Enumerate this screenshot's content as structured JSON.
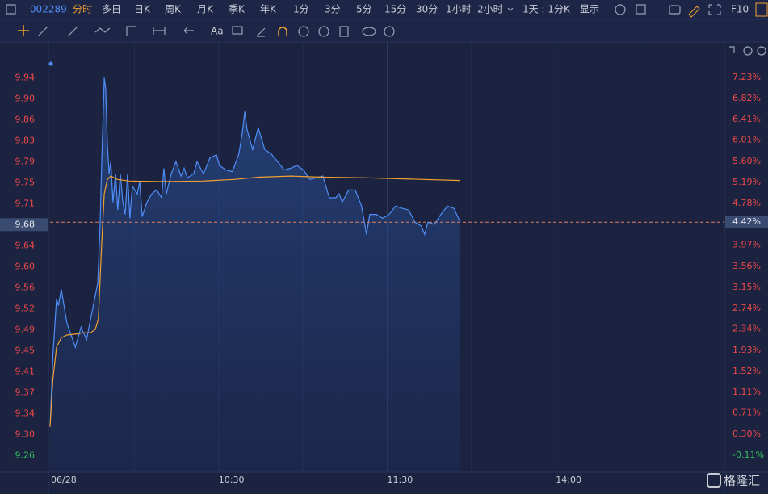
{
  "toolbar": {
    "code": "002289",
    "periods": [
      "分时",
      "多日",
      "日K",
      "周K",
      "月K",
      "季K",
      "年K",
      "1分",
      "3分",
      "5分",
      "15分",
      "30分",
      "1小时",
      "2小时"
    ],
    "period_menu": "1天 : 1分K",
    "display": "显示",
    "f10": "F10"
  },
  "drawing_tools": {
    "text_tool": "Aa"
  },
  "watermark": "格隆汇",
  "chart_data": {
    "type": "line",
    "xlim": [
      0,
      240
    ],
    "xticks": [
      {
        "value": 0,
        "label": "06/28"
      },
      {
        "value": 30,
        "label": null
      },
      {
        "value": 60,
        "label": "10:30"
      },
      {
        "value": 90,
        "label": null
      },
      {
        "value": 120,
        "label": "11:30"
      },
      {
        "value": 150,
        "label": null
      },
      {
        "value": 180,
        "label": "14:00"
      },
      {
        "value": 210,
        "label": null
      }
    ],
    "ylim": [
      9.23,
      10.0
    ],
    "yticks": [
      {
        "value": 9.94,
        "label": "9.94"
      },
      {
        "value": 9.9022,
        "label": "9.90"
      },
      {
        "value": 9.8644,
        "label": "9.86"
      },
      {
        "value": 9.8267,
        "label": "9.83"
      },
      {
        "value": 9.7889,
        "label": "9.79"
      },
      {
        "value": 9.7511,
        "label": "9.75"
      },
      {
        "value": 9.7133,
        "label": "9.71"
      },
      {
        "value": 9.6756,
        "label": "9.68"
      },
      {
        "value": 9.6378,
        "label": "9.64"
      },
      {
        "value": 9.6,
        "label": "9.60"
      },
      {
        "value": 9.5622,
        "label": "9.56"
      },
      {
        "value": 9.5244,
        "label": "9.52"
      },
      {
        "value": 9.4867,
        "label": "9.49"
      },
      {
        "value": 9.4489,
        "label": "9.45"
      },
      {
        "value": 9.4111,
        "label": "9.41"
      },
      {
        "value": 9.3733,
        "label": "9.37"
      },
      {
        "value": 9.3356,
        "label": "9.34"
      },
      {
        "value": 9.2978,
        "label": "9.30"
      },
      {
        "value": 9.26,
        "label": "9.26"
      }
    ],
    "y2lim": [
      -0.44,
      7.87
    ],
    "y2ticks": [
      {
        "value": 7.23,
        "label": "7.23%"
      },
      {
        "value": 6.82,
        "label": "6.82%"
      },
      {
        "value": 6.41,
        "label": "6.41%"
      },
      {
        "value": 6.01,
        "label": "6.01%"
      },
      {
        "value": 5.6,
        "label": "5.60%"
      },
      {
        "value": 5.19,
        "label": "5.19%"
      },
      {
        "value": 4.78,
        "label": "4.78%"
      },
      {
        "value": 4.42,
        "label": "4.42%"
      },
      {
        "value": 3.97,
        "label": "3.97%"
      },
      {
        "value": 3.56,
        "label": "3.56%"
      },
      {
        "value": 3.15,
        "label": "3.15%"
      },
      {
        "value": 2.74,
        "label": "2.74%"
      },
      {
        "value": 2.34,
        "label": "2.34%"
      },
      {
        "value": 1.93,
        "label": "1.93%"
      },
      {
        "value": 1.52,
        "label": "1.52%"
      },
      {
        "value": 1.11,
        "label": "1.11%"
      },
      {
        "value": 0.71,
        "label": "0.71%"
      },
      {
        "value": 0.3,
        "label": "0.30%"
      },
      {
        "value": -0.11,
        "label": "-0.11%"
      }
    ],
    "vertical_grid": true,
    "series": [
      {
        "color": "#4f8ef7",
        "fill": true,
        "x": [
          0,
          1,
          2.3,
          3,
          4,
          6,
          9,
          11,
          13,
          15,
          17,
          17.8,
          18.4,
          19.3,
          19.8,
          20.4,
          21,
          21.6,
          22.4,
          23.3,
          24.1,
          25,
          25.9,
          26.7,
          27.6,
          28.4,
          29.3,
          31,
          31.9,
          32.8,
          34.5,
          36.2,
          37.9,
          39.7,
          40.5,
          41.4,
          43.1,
          44.8,
          46.6,
          47.7,
          48.9,
          51.1,
          52.3,
          54.6,
          56.9,
          59.2,
          60.3,
          62.6,
          64.9,
          67.2,
          68.4,
          69.3,
          70.1,
          72.1,
          74.1,
          76.4,
          78.7,
          81,
          83.3,
          85.6,
          87.9,
          90.2,
          92.5,
          94.8,
          97.1,
          99.4,
          101.7,
          102.9,
          104,
          106.3,
          108.6,
          110.9,
          112.6,
          113.8,
          116.1,
          118.4,
          120.7,
          123,
          125.3,
          127.6,
          129.9,
          132.2,
          133.3,
          134.5,
          136.8,
          139.1,
          141.4,
          143.7,
          146
        ],
        "values": [
          9.312,
          9.44,
          9.542,
          9.53,
          9.559,
          9.498,
          9.455,
          9.491,
          9.469,
          9.52,
          9.571,
          9.673,
          9.789,
          9.94,
          9.92,
          9.818,
          9.767,
          9.789,
          9.716,
          9.767,
          9.702,
          9.767,
          9.716,
          9.694,
          9.767,
          9.687,
          9.745,
          9.731,
          9.753,
          9.69,
          9.716,
          9.731,
          9.738,
          9.724,
          9.777,
          9.731,
          9.767,
          9.789,
          9.763,
          9.777,
          9.76,
          9.767,
          9.789,
          9.767,
          9.796,
          9.801,
          9.782,
          9.774,
          9.771,
          9.803,
          9.84,
          9.879,
          9.847,
          9.811,
          9.85,
          9.811,
          9.803,
          9.789,
          9.774,
          9.777,
          9.782,
          9.774,
          9.757,
          9.76,
          9.763,
          9.724,
          9.724,
          9.731,
          9.716,
          9.738,
          9.738,
          9.709,
          9.658,
          9.694,
          9.694,
          9.687,
          9.694,
          9.709,
          9.705,
          9.702,
          9.68,
          9.673,
          9.658,
          9.68,
          9.676,
          9.694,
          9.709,
          9.705,
          9.68
        ]
      },
      {
        "color": "#f0a030",
        "fill": false,
        "x": [
          0,
          1,
          2.3,
          4,
          6,
          9.5,
          12,
          14.4,
          16.1,
          17.2,
          18.4,
          19.3,
          20.4,
          21.6,
          23.9,
          28.2,
          39.7,
          54,
          65.5,
          74.1,
          85.6,
          97.1,
          111.5,
          125.9,
          146
        ],
        "values": [
          9.312,
          9.397,
          9.455,
          9.472,
          9.477,
          9.479,
          9.481,
          9.481,
          9.487,
          9.506,
          9.644,
          9.731,
          9.757,
          9.763,
          9.757,
          9.754,
          9.753,
          9.754,
          9.757,
          9.761,
          9.763,
          9.761,
          9.76,
          9.758,
          9.755
        ]
      }
    ]
  }
}
